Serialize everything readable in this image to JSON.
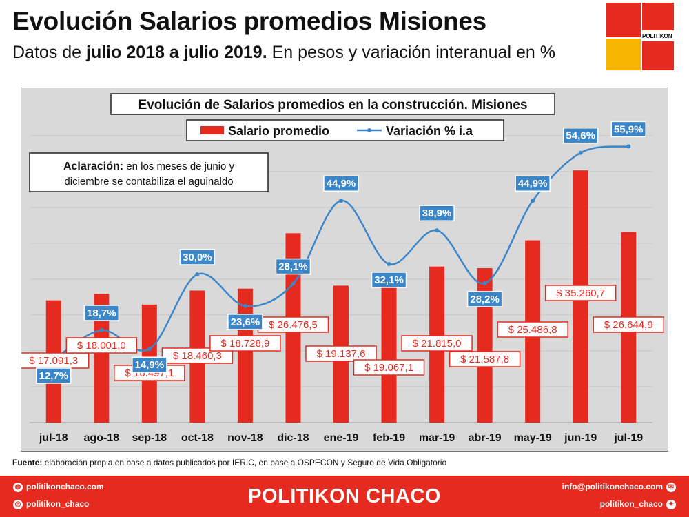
{
  "header": {
    "title": "Evolución Salarios promedios Misiones",
    "subtitle_pre": "Datos de ",
    "subtitle_bold": "julio 2018 a julio 2019.",
    "subtitle_post": " En pesos y variación interanual en %"
  },
  "logo": {
    "text": "POLITIKON",
    "colors": [
      "#e52b1f",
      "#f7b500"
    ]
  },
  "chart_data": {
    "type": "bar",
    "title": "Evolución de Salarios promedios en la construcción. Misiones",
    "categories": [
      "jul-18",
      "ago-18",
      "sep-18",
      "oct-18",
      "nov-18",
      "dic-18",
      "ene-19",
      "feb-19",
      "mar-19",
      "abr-19",
      "may-19",
      "jun-19",
      "jul-19"
    ],
    "series": [
      {
        "name": "Salario promedio",
        "type": "bar",
        "color": "#e52b1f",
        "values": [
          17091.3,
          18001.0,
          16497.1,
          18460.3,
          18728.9,
          26476.5,
          19137.6,
          19067.1,
          21815.0,
          21587.8,
          25486.8,
          35260.7,
          26644.9
        ],
        "labels": [
          "$ 17.091,3",
          "$ 18.001,0",
          "$ 16.497,1",
          "$ 18.460,3",
          "$ 18.728,9",
          "$ 26.476,5",
          "$ 19.137,6",
          "$ 19.067,1",
          "$ 21.815,0",
          "$ 21.587,8",
          "$ 25.486,8",
          "$ 35.260,7",
          "$ 26.644,9"
        ]
      },
      {
        "name": "Variación % i.a",
        "type": "line",
        "color": "#3b86c9",
        "values": [
          12.7,
          18.7,
          14.9,
          30.0,
          23.6,
          28.1,
          44.9,
          32.1,
          38.9,
          28.2,
          44.9,
          54.6,
          55.9
        ],
        "labels": [
          "12,7%",
          "18,7%",
          "14,9%",
          "30,0%",
          "23,6%",
          "28,1%",
          "44,9%",
          "32,1%",
          "38,9%",
          "28,2%",
          "44,9%",
          "54,6%",
          "55,9%"
        ]
      }
    ],
    "bar_ylim": [
      0,
      40000
    ],
    "line_ylim": [
      0,
      60
    ],
    "grid": true,
    "legend": "top-center",
    "annotation": {
      "bold": "Aclaración:",
      "line1": " en los meses de junio y",
      "line2": "diciembre se contabiliza el aguinaldo"
    }
  },
  "source": {
    "label": "Fuente:",
    "text": " elaboración propia en base a datos publicados por IERIC, en base a OSPECON y Seguro de Vida Obligatorio"
  },
  "footer": {
    "brand": "POLITIKON CHACO",
    "website": "politikonchaco.com",
    "instagram": "politikon_chaco",
    "email": "info@politikonchaco.com",
    "twitter": "politikon_chaco"
  }
}
